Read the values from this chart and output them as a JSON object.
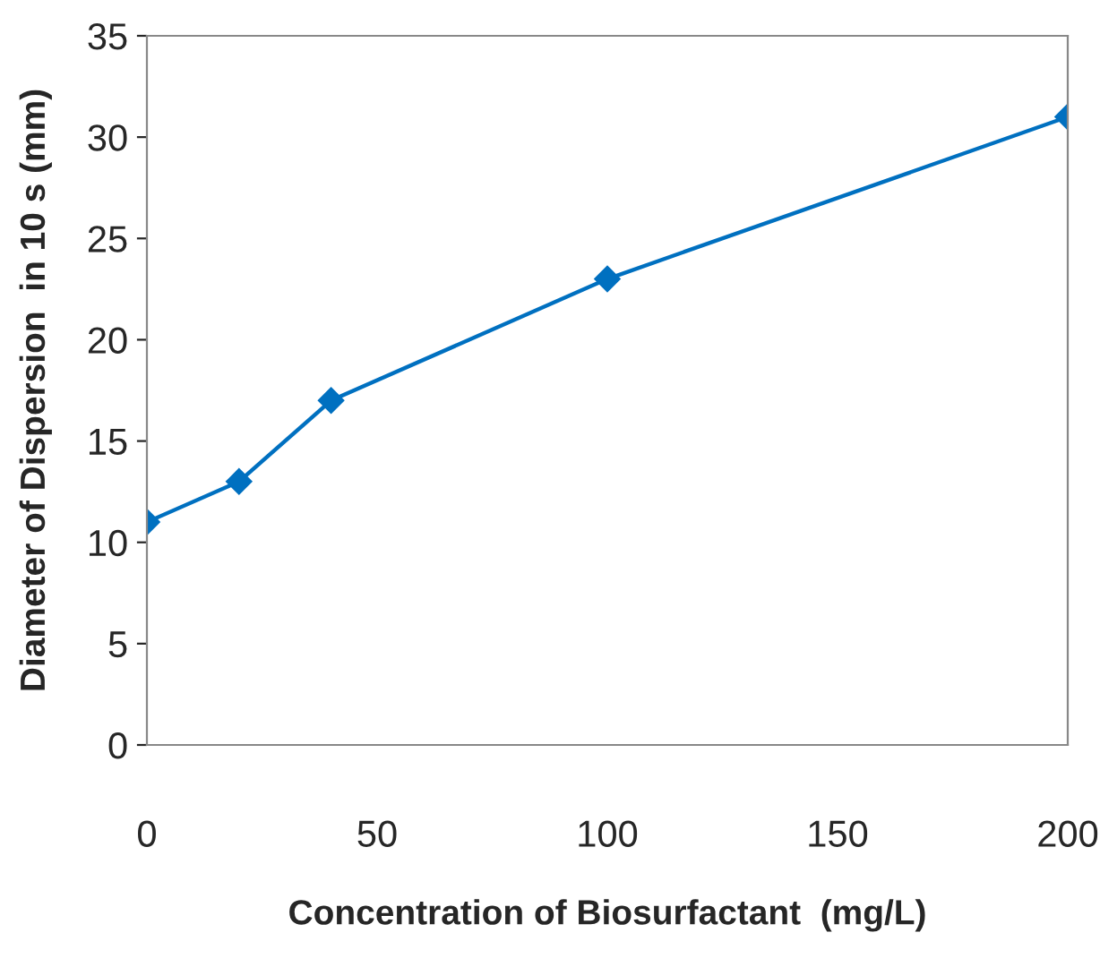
{
  "chart_data": {
    "type": "line",
    "xlabel": "Concentration of Biosurfactant  (mg/L)",
    "ylabel": "Diameter of Dispersion  in 10 s (mm)",
    "x": [
      0,
      20,
      40,
      100,
      200
    ],
    "series": [
      {
        "color": "#0070c0",
        "values": [
          11,
          13,
          17,
          23,
          31
        ]
      }
    ],
    "xlim": [
      0,
      200
    ],
    "xticks": [
      0,
      50,
      100,
      150,
      200
    ],
    "ylim": [
      0,
      35
    ],
    "yticks": [
      0,
      5,
      10,
      15,
      20,
      25,
      30,
      35
    ],
    "grid": false,
    "legend": false,
    "marker": "diamond",
    "line_style": "solid"
  }
}
